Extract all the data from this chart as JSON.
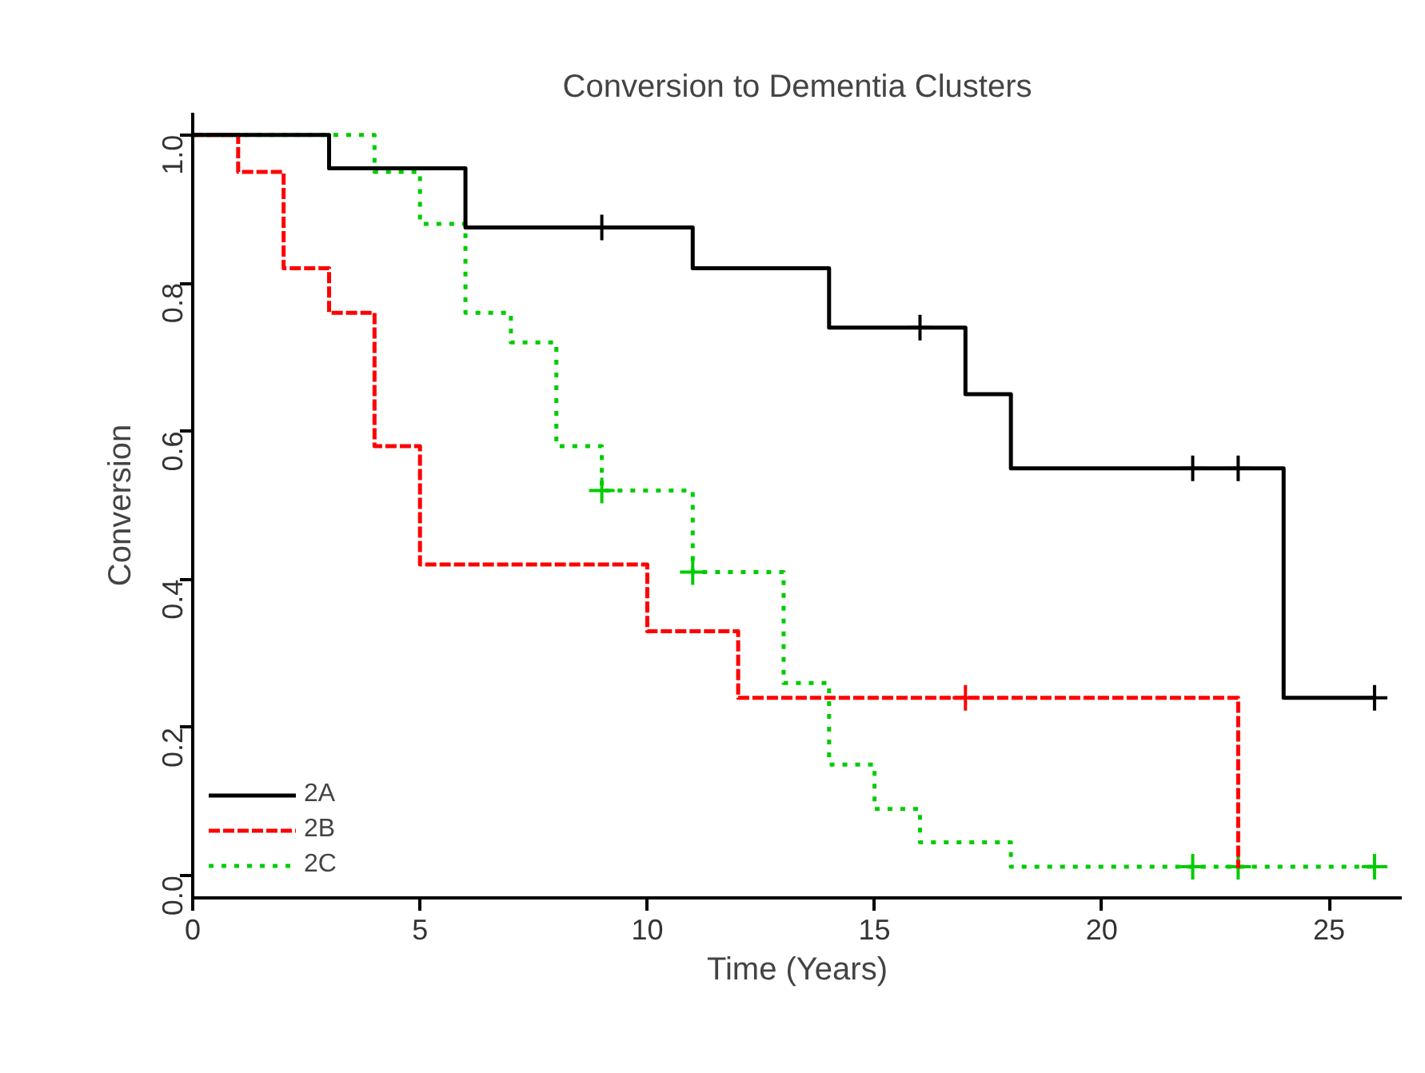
{
  "chart_data": {
    "type": "step",
    "title": "Conversion to Dementia Clusters",
    "xlabel": "Time (Years)",
    "ylabel": "Conversion",
    "xlim": [
      0,
      26.6
    ],
    "ylim": [
      -0.03,
      1.03
    ],
    "xticks": [
      0,
      5,
      10,
      15,
      20,
      25
    ],
    "yticks": [
      {
        "value": 0,
        "label": "0.0"
      },
      0.2,
      0.4,
      0.6,
      0.8,
      {
        "value": 1,
        "label": "1.0"
      }
    ],
    "grid": false,
    "legend": "bottom left",
    "series": [
      {
        "name": "2A",
        "color": "#000000",
        "line_style": "solid",
        "x": [
          0,
          3,
          6,
          11,
          14,
          17,
          18,
          24,
          26
        ],
        "values": [
          1.0,
          0.955,
          0.875,
          0.82,
          0.74,
          0.65,
          0.55,
          0.24,
          0.24
        ]
      },
      {
        "name": "2B",
        "color": "#ff0000",
        "line_style": "dashed",
        "x": [
          0,
          1,
          2,
          3,
          4,
          5,
          10,
          12,
          23
        ],
        "values": [
          1.0,
          0.95,
          0.82,
          0.76,
          0.58,
          0.42,
          0.33,
          0.24,
          0.01
        ]
      },
      {
        "name": "2C",
        "color": "#00cc00",
        "line_style": "dotted",
        "x": [
          0,
          4,
          5,
          6,
          7,
          8,
          9,
          11,
          13,
          14,
          15,
          16,
          18,
          26
        ],
        "values": [
          1.0,
          0.95,
          0.88,
          0.76,
          0.72,
          0.58,
          0.52,
          0.41,
          0.26,
          0.15,
          0.09,
          0.045,
          0.012,
          0.012
        ]
      },
      {
        "type": "scatter",
        "marker": "cross",
        "color": "#000000",
        "x": [
          9,
          16,
          22,
          23,
          26
        ],
        "values": [
          0.875,
          0.74,
          0.55,
          0.55,
          0.24
        ]
      },
      {
        "type": "scatter",
        "marker": "cross",
        "color": "#ff0000",
        "x": [
          17
        ],
        "values": [
          0.24
        ]
      },
      {
        "type": "scatter",
        "marker": "cross",
        "color": "#00cc00",
        "x": [
          9,
          11,
          22,
          23,
          26
        ],
        "values": [
          0.52,
          0.41,
          0.012,
          0.012,
          0.012
        ]
      }
    ]
  }
}
